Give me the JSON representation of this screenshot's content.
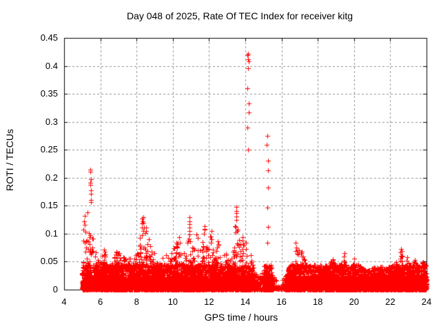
{
  "chart_data": {
    "type": "scatter",
    "title": "Day 048 of 2025, Rate Of TEC Index for receiver kitg",
    "xlabel": "GPS time / hours",
    "ylabel": "ROTI / TECUs",
    "xlim": [
      4,
      24
    ],
    "ylim": [
      0,
      0.45
    ],
    "xticks": [
      4,
      6,
      8,
      10,
      12,
      14,
      16,
      18,
      20,
      22,
      24
    ],
    "xtick_labels": [
      "4",
      "6",
      "8",
      "10",
      "12",
      "14",
      "16",
      "18",
      "20",
      "22",
      "24"
    ],
    "yticks": [
      0,
      0.05,
      0.1,
      0.15,
      0.2,
      0.25,
      0.3,
      0.35,
      0.4,
      0.45
    ],
    "ytick_labels": [
      "0",
      "0.05",
      "0.1",
      "0.15",
      "0.2",
      "0.25",
      "0.3",
      "0.35",
      "0.4",
      "0.45"
    ],
    "grid": true,
    "legend": "none",
    "series_name": "ROTI",
    "marker": "plus",
    "marker_color": "#ff0000",
    "grid_color": "#909090",
    "axis_color": "#000000",
    "background_color": "#ffffff",
    "density_segments": [
      {
        "x0": 5.0,
        "x1": 14.55,
        "pts_per_hour": 760
      },
      {
        "x0": 14.55,
        "x1": 15.0,
        "pts_per_hour": 130
      },
      {
        "x0": 15.0,
        "x1": 15.55,
        "pts_per_hour": 560
      },
      {
        "x0": 15.55,
        "x1": 16.22,
        "pts_per_hour": 55
      },
      {
        "x0": 16.22,
        "x1": 24.0,
        "pts_per_hour": 700
      }
    ],
    "envelope": [
      [
        5.0,
        0.1
      ],
      [
        5.1,
        0.14
      ],
      [
        5.2,
        0.12
      ],
      [
        5.3,
        0.15
      ],
      [
        5.42,
        0.155
      ],
      [
        5.52,
        0.12
      ],
      [
        5.65,
        0.08
      ],
      [
        5.8,
        0.065
      ],
      [
        6.0,
        0.055
      ],
      [
        6.2,
        0.075
      ],
      [
        6.5,
        0.05
      ],
      [
        6.7,
        0.055
      ],
      [
        6.9,
        0.07
      ],
      [
        7.2,
        0.06
      ],
      [
        7.5,
        0.062
      ],
      [
        7.8,
        0.05
      ],
      [
        8.05,
        0.07
      ],
      [
        8.3,
        0.13
      ],
      [
        8.6,
        0.105
      ],
      [
        8.9,
        0.07
      ],
      [
        9.1,
        0.06
      ],
      [
        9.35,
        0.055
      ],
      [
        9.6,
        0.07
      ],
      [
        9.85,
        0.05
      ],
      [
        10.05,
        0.08
      ],
      [
        10.35,
        0.095
      ],
      [
        10.55,
        0.08
      ],
      [
        10.7,
        0.06
      ],
      [
        10.9,
        0.13
      ],
      [
        11.1,
        0.07
      ],
      [
        11.35,
        0.1
      ],
      [
        11.55,
        0.065
      ],
      [
        11.75,
        0.115
      ],
      [
        11.95,
        0.07
      ],
      [
        12.1,
        0.105
      ],
      [
        12.3,
        0.06
      ],
      [
        12.5,
        0.085
      ],
      [
        12.7,
        0.055
      ],
      [
        12.9,
        0.07
      ],
      [
        13.1,
        0.05
      ],
      [
        13.3,
        0.065
      ],
      [
        13.5,
        0.15
      ],
      [
        13.7,
        0.08
      ],
      [
        13.85,
        0.095
      ],
      [
        14.1,
        0.085
      ],
      [
        14.3,
        0.06
      ],
      [
        14.5,
        0.035
      ],
      [
        14.75,
        0.022
      ],
      [
        15.0,
        0.04
      ],
      [
        15.2,
        0.055
      ],
      [
        15.4,
        0.045
      ],
      [
        15.55,
        0.03
      ],
      [
        15.9,
        0.008
      ],
      [
        16.22,
        0.03
      ],
      [
        16.5,
        0.045
      ],
      [
        16.8,
        0.085
      ],
      [
        17.0,
        0.073
      ],
      [
        17.15,
        0.065
      ],
      [
        17.4,
        0.045
      ],
      [
        17.7,
        0.042
      ],
      [
        18.05,
        0.05
      ],
      [
        18.3,
        0.04
      ],
      [
        18.6,
        0.05
      ],
      [
        18.85,
        0.055
      ],
      [
        19.1,
        0.04
      ],
      [
        19.45,
        0.065
      ],
      [
        19.75,
        0.04
      ],
      [
        20.0,
        0.055
      ],
      [
        20.4,
        0.04
      ],
      [
        20.8,
        0.035
      ],
      [
        21.1,
        0.04
      ],
      [
        21.5,
        0.042
      ],
      [
        21.8,
        0.038
      ],
      [
        22.1,
        0.045
      ],
      [
        22.35,
        0.05
      ],
      [
        22.6,
        0.072
      ],
      [
        22.9,
        0.058
      ],
      [
        23.1,
        0.045
      ],
      [
        23.35,
        0.055
      ],
      [
        23.6,
        0.04
      ],
      [
        23.8,
        0.05
      ],
      [
        24.0,
        0.045
      ]
    ],
    "spike_strings": [
      {
        "x": 5.45,
        "v": [
          0.216,
          0.211,
          0.197,
          0.192,
          0.186,
          0.177,
          0.17,
          0.162,
          0.155
        ]
      },
      {
        "x": 8.32,
        "v": [
          0.13,
          0.124,
          0.117,
          0.111,
          0.104,
          0.098
        ]
      },
      {
        "x": 10.9,
        "v": [
          0.13,
          0.124,
          0.118,
          0.111,
          0.105,
          0.098
        ]
      },
      {
        "x": 11.35,
        "v": [
          0.099,
          0.092
        ]
      },
      {
        "x": 11.75,
        "v": [
          0.114,
          0.107,
          0.1
        ]
      },
      {
        "x": 12.1,
        "v": [
          0.104,
          0.097
        ]
      },
      {
        "x": 12.5,
        "v": [
          0.085,
          0.078
        ]
      },
      {
        "x": 13.5,
        "v": [
          0.148,
          0.142,
          0.136,
          0.13,
          0.123,
          0.113,
          0.102
        ]
      },
      {
        "x": 13.85,
        "v": [
          0.094,
          0.087
        ]
      },
      {
        "x": 14.15,
        "v": [
          0.422,
          0.419,
          0.413,
          0.407,
          0.397,
          0.361,
          0.333,
          0.317,
          0.29,
          0.252
        ]
      },
      {
        "x": 15.22,
        "v": [
          0.276,
          0.258,
          0.23,
          0.212,
          0.184,
          0.147,
          0.113,
          0.084
        ]
      },
      {
        "x": 16.8,
        "v": [
          0.083,
          0.076,
          0.069
        ]
      },
      {
        "x": 17.1,
        "v": [
          0.068,
          0.061
        ]
      },
      {
        "x": 18.85,
        "v": [
          0.054,
          0.049
        ]
      },
      {
        "x": 19.45,
        "v": [
          0.064,
          0.058,
          0.052
        ]
      },
      {
        "x": 20.0,
        "v": [
          0.054
        ]
      },
      {
        "x": 22.6,
        "v": [
          0.072,
          0.066,
          0.06
        ]
      },
      {
        "x": 22.9,
        "v": [
          0.057,
          0.052
        ]
      },
      {
        "x": 23.35,
        "v": [
          0.053
        ]
      }
    ]
  }
}
